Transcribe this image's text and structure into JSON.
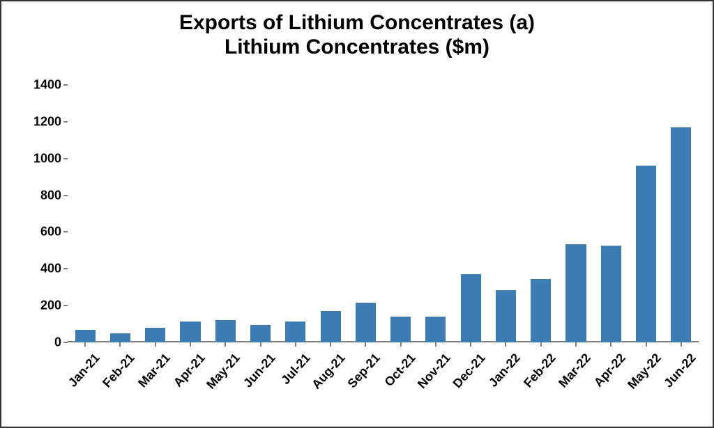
{
  "chart": {
    "type": "bar",
    "title_line1": "Exports of Lithium Concentrates (a)",
    "title_line2": "Lithium Concentrates ($m)",
    "title_fontsize": 30,
    "title_color": "#000000",
    "background_color": "#ffffff",
    "border_color": "#333333",
    "axis_line_color": "#7f7f7f",
    "bar_color": "#3b7cb5",
    "tick_label_fontsize": 18,
    "tick_label_color": "#000000",
    "tick_label_weight": "bold",
    "ylim": [
      0,
      1400
    ],
    "ytick_step": 200,
    "yticks": [
      0,
      200,
      400,
      600,
      800,
      1000,
      1200,
      1400
    ],
    "xlabel_rotation_deg": -48,
    "bar_width_ratio": 0.58,
    "categories": [
      "Jan-21",
      "Feb-21",
      "Mar-21",
      "Apr-21",
      "May-21",
      "Jun-21",
      "Jul-21",
      "Aug-21",
      "Sep-21",
      "Oct-21",
      "Nov-21",
      "Dec-21",
      "Jan-22",
      "Feb-22",
      "Mar-22",
      "Apr-22",
      "May-22",
      "Jun-22"
    ],
    "values": [
      70,
      50,
      80,
      115,
      120,
      95,
      115,
      170,
      215,
      140,
      140,
      370,
      285,
      345,
      535,
      525,
      960,
      1170
    ],
    "grid": false
  }
}
